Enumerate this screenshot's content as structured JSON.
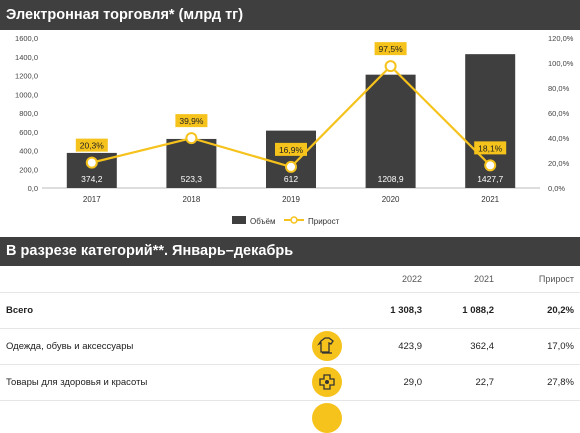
{
  "header1": {
    "title": "Электронная торговля* (млрд тг)"
  },
  "header2": {
    "title": "В разрезе категорий**. Январь–декабрь"
  },
  "chart_data": {
    "type": "bar",
    "categories": [
      "2017",
      "2018",
      "2019",
      "2020",
      "2021"
    ],
    "series": [
      {
        "name": "Объём",
        "values": [
          374.2,
          523.3,
          612,
          1208.9,
          1427.7
        ],
        "labels": [
          "374,2",
          "523,3",
          "612",
          "1208,9",
          "1427,7"
        ]
      },
      {
        "name": "Прирост",
        "type": "line",
        "values": [
          20.3,
          39.9,
          16.9,
          97.5,
          18.1
        ],
        "labels": [
          "20,3%",
          "39,9%",
          "16,9%",
          "97,5%",
          "18,1%"
        ]
      }
    ],
    "y_left": {
      "ticks": [
        "0,0",
        "200,0",
        "400,0",
        "600,0",
        "800,0",
        "1000,0",
        "1200,0",
        "1400,0",
        "1600,0"
      ],
      "ylim": [
        0,
        1600
      ]
    },
    "y_right": {
      "ticks": [
        "0,0%",
        "20,0%",
        "40,0%",
        "60,0%",
        "80,0%",
        "100,0%",
        "120,0%"
      ],
      "ylim": [
        0,
        120
      ]
    },
    "legend": {
      "placement": "bottom"
    },
    "colors": {
      "bar": "#3f3f3f",
      "line": "#f6c21c"
    }
  },
  "table": {
    "headers": [
      "2022",
      "2021",
      "Прирост"
    ],
    "rows": [
      {
        "label": "Всего",
        "v2022": "1 308,3",
        "v2021": "1 088,2",
        "growth": "20,2%",
        "total": true,
        "icon": ""
      },
      {
        "label": "Одежда, обувь и аксессуары",
        "v2022": "423,9",
        "v2021": "362,4",
        "growth": "17,0%",
        "total": false,
        "icon": "clothing-icon"
      },
      {
        "label": "Товары для здоровья и красоты",
        "v2022": "29,0",
        "v2021": "22,7",
        "growth": "27,8%",
        "total": false,
        "icon": "health-beauty-icon"
      }
    ]
  }
}
